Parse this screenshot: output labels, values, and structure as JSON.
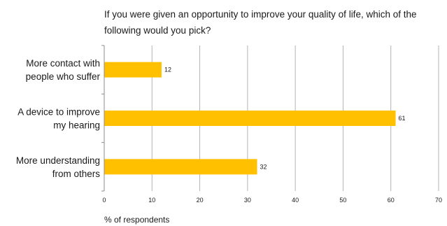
{
  "chart_data": {
    "type": "bar",
    "orientation": "horizontal",
    "title": "If you were given an opportunity to improve your quality of life, which of the following would you pick?",
    "categories": [
      [
        "More contact with",
        "people who suffer"
      ],
      [
        "A device to improve",
        "my hearing"
      ],
      [
        "More understanding",
        "from others"
      ]
    ],
    "values": [
      12,
      61,
      32
    ],
    "xlabel": "% of respondents",
    "xlim": [
      0,
      70
    ],
    "xticks": [
      0,
      10,
      20,
      30,
      40,
      50,
      60,
      70
    ],
    "grid": "vertical",
    "data_labels": true,
    "colors": {
      "bar": "#FFC000",
      "grid": "#b3b3b3",
      "axis": "#8c8c8c"
    }
  }
}
